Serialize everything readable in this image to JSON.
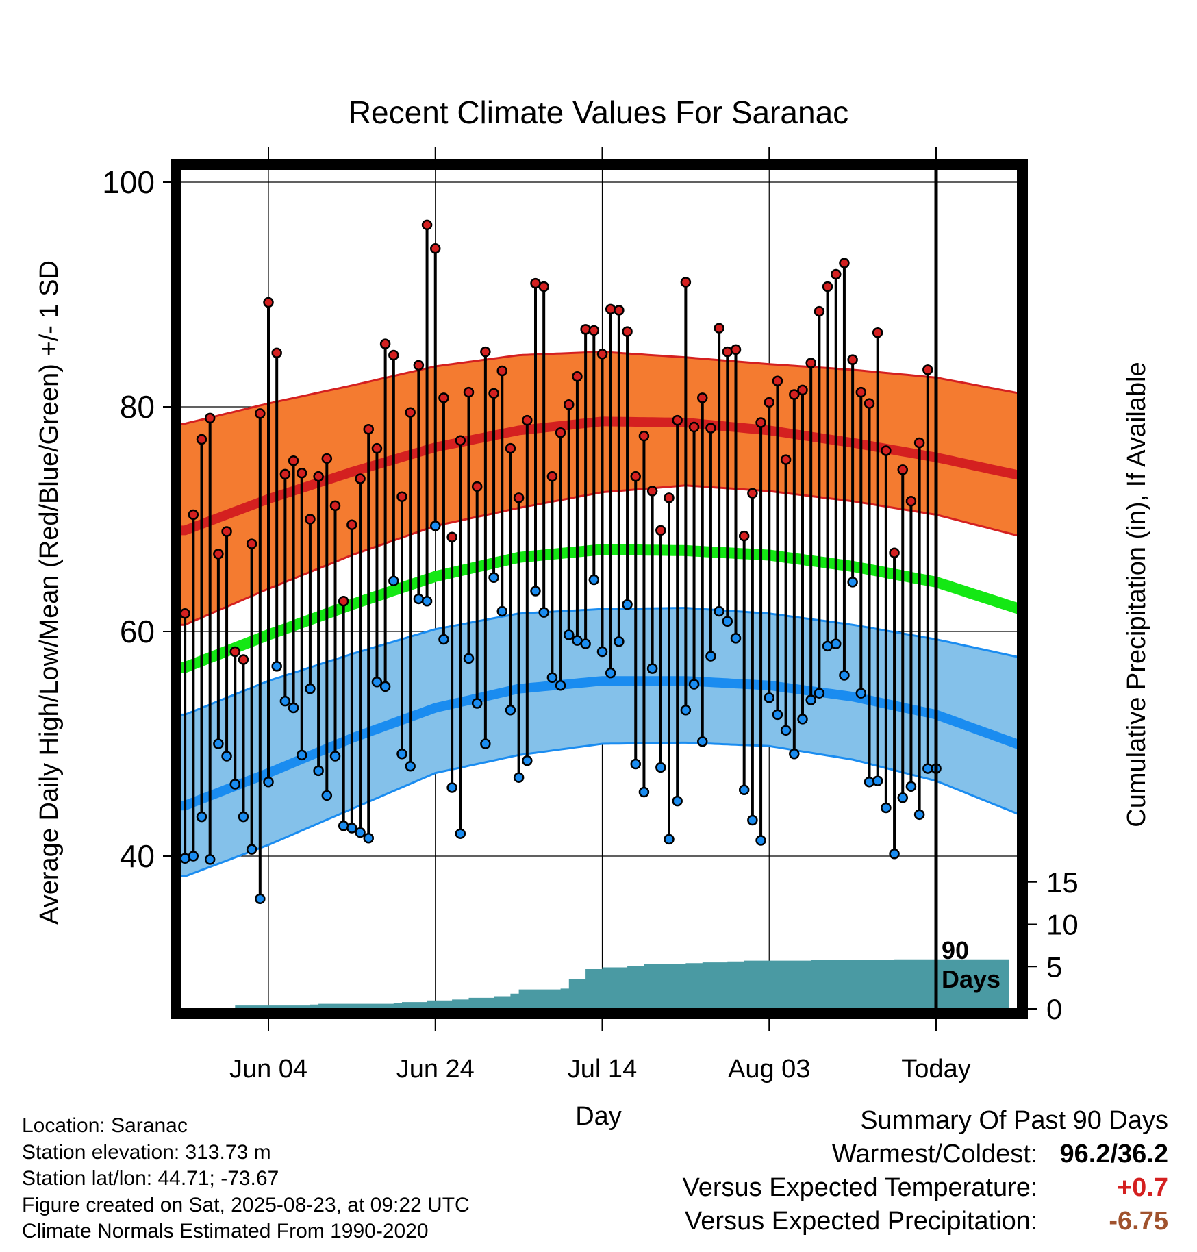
{
  "chart_data": {
    "type": "line",
    "title": "Recent Climate Values For Saranac",
    "xlabel": "Day",
    "ylabel": "Average Daily High/Low/Mean (Red/Blue/Green) +/- 1 SD",
    "y2label": "Cumulative Precipitation (in), If Available",
    "ylim": [
      25,
      102
    ],
    "y_ticks": [
      "100",
      "80",
      "60",
      "40"
    ],
    "y2_ticks": [
      "0",
      "5",
      "10",
      "15"
    ],
    "x_ticks": [
      {
        "label": "Jun 04",
        "day": 10
      },
      {
        "label": "Jun 24",
        "day": 30
      },
      {
        "label": "Jul 14",
        "day": 50
      },
      {
        "label": "Aug 03",
        "day": 70
      },
      {
        "label": "Today",
        "day": 90
      }
    ],
    "marker_label": "90 Days",
    "grid": true,
    "colors": {
      "high_band": "#f47b30",
      "high_line": "#d42020",
      "mean_line": "#14e814",
      "low_band": "#84c1ea",
      "low_line": "#1a8cf0",
      "precip": "#4a9aa3",
      "high_dot": "#d42020",
      "low_dot": "#1a8cf0"
    },
    "normals": {
      "days": [
        0,
        10,
        20,
        30,
        40,
        50,
        60,
        70,
        80,
        90,
        100
      ],
      "high_mean": [
        69.0,
        71.8,
        74.2,
        76.4,
        77.9,
        78.7,
        78.6,
        77.9,
        76.8,
        75.5,
        73.9
      ],
      "high_sd_upper": [
        78.5,
        80.3,
        81.9,
        83.6,
        84.6,
        84.9,
        84.4,
        83.8,
        83.3,
        82.6,
        81.2
      ],
      "high_sd_lower": [
        60.6,
        63.8,
        66.8,
        69.4,
        71.0,
        72.4,
        73.0,
        72.5,
        71.6,
        70.4,
        68.5
      ],
      "mean": [
        56.8,
        59.7,
        62.4,
        64.9,
        66.6,
        67.3,
        67.2,
        66.8,
        65.8,
        64.4,
        62.0
      ],
      "low_mean": [
        44.5,
        47.4,
        50.5,
        53.2,
        54.9,
        55.6,
        55.6,
        55.2,
        54.2,
        52.6,
        49.9
      ],
      "low_sd_upper": [
        52.6,
        55.6,
        58.0,
        60.2,
        61.6,
        62.0,
        62.1,
        61.6,
        60.6,
        59.3,
        57.7
      ],
      "low_sd_lower": [
        38.2,
        41.0,
        44.2,
        47.4,
        49.0,
        50.0,
        50.1,
        49.8,
        48.6,
        46.7,
        43.7
      ]
    },
    "daily": {
      "days": [
        0,
        1,
        2,
        3,
        4,
        5,
        6,
        7,
        8,
        9,
        10,
        11,
        12,
        13,
        14,
        15,
        16,
        17,
        18,
        19,
        20,
        21,
        22,
        23,
        24,
        25,
        26,
        27,
        28,
        29,
        30,
        31,
        32,
        33,
        34,
        35,
        36,
        37,
        38,
        39,
        40,
        41,
        42,
        43,
        44,
        45,
        46,
        47,
        48,
        49,
        50,
        51,
        52,
        53,
        54,
        55,
        56,
        57,
        58,
        59,
        60,
        61,
        62,
        63,
        64,
        65,
        66,
        67,
        68,
        69,
        70,
        71,
        72,
        73,
        74,
        75,
        76,
        77,
        78,
        79,
        80,
        81,
        82,
        83,
        84,
        85,
        86,
        87,
        88,
        89,
        90
      ],
      "high": [
        61.6,
        70.4,
        77.1,
        79.0,
        66.9,
        68.9,
        58.2,
        57.5,
        67.8,
        79.4,
        89.3,
        84.8,
        74.0,
        75.2,
        74.1,
        70.0,
        73.8,
        75.4,
        71.2,
        62.7,
        69.5,
        73.6,
        78.0,
        76.3,
        85.6,
        84.6,
        72.0,
        79.5,
        83.7,
        96.2,
        94.1,
        80.8,
        68.4,
        77.0,
        81.3,
        72.9,
        84.9,
        81.2,
        83.2,
        76.3,
        71.9,
        78.8,
        91.0,
        90.7,
        73.8,
        77.7,
        80.2,
        82.7,
        86.9,
        86.8,
        84.7,
        88.7,
        88.6,
        86.7,
        73.8,
        77.4,
        72.5,
        69.0,
        71.9,
        78.8,
        91.1,
        78.2,
        80.8,
        78.1,
        87.0,
        84.9,
        85.1,
        68.5,
        72.3,
        78.6,
        80.4,
        82.3,
        75.3,
        81.1,
        81.5,
        83.9,
        88.5,
        90.7,
        91.8,
        92.8,
        84.2,
        81.3,
        80.3,
        86.6,
        76.1,
        67.0,
        74.4,
        71.6,
        76.8,
        83.3,
        47.8
      ],
      "low": [
        39.8,
        40.0,
        43.5,
        39.7,
        50.0,
        48.9,
        46.4,
        43.5,
        40.6,
        36.2,
        46.6,
        56.9,
        53.8,
        53.2,
        49.0,
        54.9,
        47.6,
        45.4,
        48.9,
        42.7,
        42.5,
        42.1,
        41.6,
        55.5,
        55.1,
        64.5,
        49.1,
        48.0,
        62.9,
        62.7,
        69.4,
        59.3,
        46.1,
        42.0,
        57.6,
        53.6,
        50.0,
        64.8,
        61.8,
        53.0,
        47.0,
        48.5,
        63.6,
        61.7,
        55.9,
        55.2,
        59.7,
        59.2,
        58.9,
        64.6,
        58.2,
        56.3,
        59.1,
        62.4,
        48.2,
        45.7,
        56.7,
        47.9,
        41.5,
        44.9,
        53.0,
        55.3,
        50.2,
        57.8,
        61.8,
        60.9,
        59.4,
        45.9,
        43.2,
        41.4,
        54.1,
        52.6,
        51.2,
        49.1,
        52.2,
        53.9,
        54.5,
        58.7,
        58.9,
        56.1,
        64.4,
        54.5,
        46.6,
        46.7,
        44.3,
        40.2,
        45.2,
        46.2,
        43.7,
        47.8,
        47.8
      ]
    },
    "precip": {
      "days": [
        0,
        6,
        15,
        16,
        25,
        26,
        29,
        32,
        34,
        37,
        39,
        40,
        45,
        46,
        48,
        50,
        53,
        55,
        60,
        62,
        65,
        67,
        75,
        83,
        85,
        100
      ],
      "values": [
        0.0,
        0.4,
        0.5,
        0.6,
        0.7,
        0.8,
        1.0,
        1.1,
        1.3,
        1.5,
        1.8,
        2.3,
        2.4,
        3.5,
        4.7,
        4.9,
        5.1,
        5.3,
        5.4,
        5.5,
        5.6,
        5.7,
        5.75,
        5.8,
        5.85,
        5.9
      ]
    }
  },
  "footer": {
    "location": "Location: Saranac",
    "elevation": "Station elevation: 313.73 m",
    "latlon": "Station lat/lon: 44.71; -73.67",
    "created": "Figure created on Sat, 2025-08-23, at 09:22 UTC",
    "normals_note": "Climate Normals Estimated From 1990-2020"
  },
  "summary": {
    "title": "Summary Of Past 90 Days",
    "warmest_label": "Warmest/Coldest:",
    "warmest_value": "96.2/36.2",
    "temp_label": "Versus Expected Temperature:",
    "temp_value": "+0.7",
    "temp_color": "#d42020",
    "precip_label": "Versus Expected Precipitation:",
    "precip_value": "-6.75",
    "precip_color": "#a0522d"
  }
}
